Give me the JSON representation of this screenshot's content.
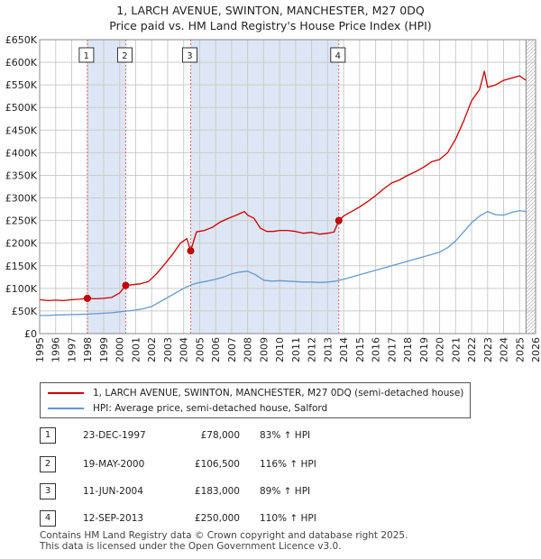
{
  "title_line1": "1, LARCH AVENUE, SWINTON, MANCHESTER, M27 0DQ",
  "title_line2": "Price paid vs. HM Land Registry's House Price Index (HPI)",
  "chart_data": {
    "type": "line",
    "title": "1, LARCH AVENUE, SWINTON, MANCHESTER, M27 0DQ — Price paid vs. HM Land Registry's House Price Index (HPI)",
    "xlim": [
      1995,
      2026
    ],
    "ylim": [
      0,
      650000
    ],
    "x_ticks": [
      1995,
      1996,
      1997,
      1998,
      1999,
      2000,
      2001,
      2002,
      2003,
      2004,
      2005,
      2006,
      2007,
      2008,
      2009,
      2010,
      2011,
      2012,
      2013,
      2014,
      2015,
      2016,
      2017,
      2018,
      2019,
      2020,
      2021,
      2022,
      2023,
      2024,
      2025,
      2026
    ],
    "y_ticks": [
      0,
      50000,
      100000,
      150000,
      200000,
      250000,
      300000,
      350000,
      400000,
      450000,
      500000,
      550000,
      600000,
      650000
    ],
    "y_tick_labels": [
      "£0",
      "£50K",
      "£100K",
      "£150K",
      "£200K",
      "£250K",
      "£300K",
      "£350K",
      "£400K",
      "£450K",
      "£500K",
      "£550K",
      "£600K",
      "£650K"
    ],
    "colors": {
      "property": "#cc0000",
      "hpi": "#6699cc",
      "sale_marker": "#cc0000",
      "shading": "#dde6f4",
      "vline": "#e06666"
    },
    "series": [
      {
        "name": "1, LARCH AVENUE, SWINTON, MANCHESTER, M27 0DQ (semi-detached house)",
        "x": [
          1995.0,
          1995.5,
          1996.0,
          1996.5,
          1997.0,
          1997.5,
          1997.98,
          1998.5,
          1999.0,
          1999.5,
          2000.0,
          2000.38,
          2000.8,
          2001.3,
          2001.8,
          2002.3,
          2002.8,
          2003.3,
          2003.8,
          2004.2,
          2004.44,
          2004.8,
          2005.3,
          2005.8,
          2006.3,
          2006.8,
          2007.3,
          2007.8,
          2008.0,
          2008.4,
          2008.8,
          2009.2,
          2009.6,
          2010.0,
          2010.5,
          2011.0,
          2011.5,
          2012.0,
          2012.5,
          2013.0,
          2013.4,
          2013.7,
          2014.0,
          2014.5,
          2015.0,
          2015.5,
          2016.0,
          2016.5,
          2017.0,
          2017.5,
          2018.0,
          2018.5,
          2019.0,
          2019.5,
          2020.0,
          2020.5,
          2021.0,
          2021.5,
          2022.0,
          2022.5,
          2022.8,
          2023.0,
          2023.5,
          2024.0,
          2024.5,
          2025.0,
          2025.4
        ],
        "values": [
          75000,
          73000,
          74000,
          73000,
          75000,
          76000,
          78000,
          77000,
          78000,
          80000,
          90000,
          106500,
          108000,
          110000,
          115000,
          132000,
          153000,
          175000,
          200000,
          210000,
          183000,
          225000,
          228000,
          235000,
          247000,
          255000,
          262000,
          270000,
          262000,
          255000,
          233000,
          226000,
          226000,
          228000,
          228000,
          226000,
          222000,
          224000,
          220000,
          222000,
          225000,
          250000,
          260000,
          270000,
          280000,
          292000,
          305000,
          320000,
          333000,
          340000,
          350000,
          358000,
          368000,
          380000,
          385000,
          400000,
          430000,
          470000,
          515000,
          540000,
          580000,
          545000,
          550000,
          560000,
          565000,
          570000,
          560000
        ]
      },
      {
        "name": "HPI: Average price, semi-detached house, Salford",
        "x": [
          1995.0,
          1995.5,
          1996.0,
          1996.5,
          1997.0,
          1997.5,
          1998.0,
          1998.5,
          1999.0,
          1999.5,
          2000.0,
          2000.5,
          2001.0,
          2001.5,
          2002.0,
          2002.5,
          2003.0,
          2003.5,
          2004.0,
          2004.5,
          2005.0,
          2005.5,
          2006.0,
          2006.5,
          2007.0,
          2007.5,
          2008.0,
          2008.5,
          2009.0,
          2009.5,
          2010.0,
          2010.5,
          2011.0,
          2011.5,
          2012.0,
          2012.5,
          2013.0,
          2013.5,
          2014.0,
          2014.5,
          2015.0,
          2015.5,
          2016.0,
          2016.5,
          2017.0,
          2017.5,
          2018.0,
          2018.5,
          2019.0,
          2019.5,
          2020.0,
          2020.5,
          2021.0,
          2021.5,
          2022.0,
          2022.5,
          2023.0,
          2023.5,
          2024.0,
          2024.5,
          2025.0,
          2025.4
        ],
        "values": [
          40000,
          40000,
          41000,
          41500,
          42000,
          42500,
          43000,
          44000,
          45000,
          46000,
          48000,
          50000,
          52000,
          55000,
          60000,
          70000,
          80000,
          90000,
          100000,
          108000,
          113000,
          116000,
          120000,
          125000,
          132000,
          136000,
          138000,
          130000,
          118000,
          116000,
          117000,
          116000,
          115000,
          114000,
          114000,
          113000,
          114000,
          116000,
          120000,
          125000,
          130000,
          135000,
          140000,
          145000,
          150000,
          155000,
          160000,
          165000,
          170000,
          175000,
          180000,
          190000,
          205000,
          225000,
          245000,
          260000,
          270000,
          263000,
          262000,
          268000,
          272000,
          270000
        ]
      }
    ],
    "sales": [
      {
        "label": "1",
        "date": "23-DEC-1997",
        "price": "£78,000",
        "hpi": "83% ↑ HPI",
        "x": 1997.98,
        "value": 78000
      },
      {
        "label": "2",
        "date": "19-MAY-2000",
        "price": "£106,500",
        "hpi": "116% ↑ HPI",
        "x": 2000.38,
        "value": 106500
      },
      {
        "label": "3",
        "date": "11-JUN-2004",
        "price": "£183,000",
        "hpi": "89% ↑ HPI",
        "x": 2004.44,
        "value": 183000
      },
      {
        "label": "4",
        "date": "12-SEP-2013",
        "price": "£250,000",
        "hpi": "110% ↑ HPI",
        "x": 2013.7,
        "value": 250000
      }
    ],
    "shaded_spans": [
      [
        1997.98,
        2000.38
      ],
      [
        2004.44,
        2013.7
      ]
    ],
    "forecast_from": 2025.4
  },
  "legend": {
    "property": "1, LARCH AVENUE, SWINTON, MANCHESTER, M27 0DQ (semi-detached house)",
    "hpi": "HPI: Average price, semi-detached house, Salford"
  },
  "footer_line1": "Contains HM Land Registry data © Crown copyright and database right 2025.",
  "footer_line2": "This data is licensed under the Open Government Licence v3.0."
}
